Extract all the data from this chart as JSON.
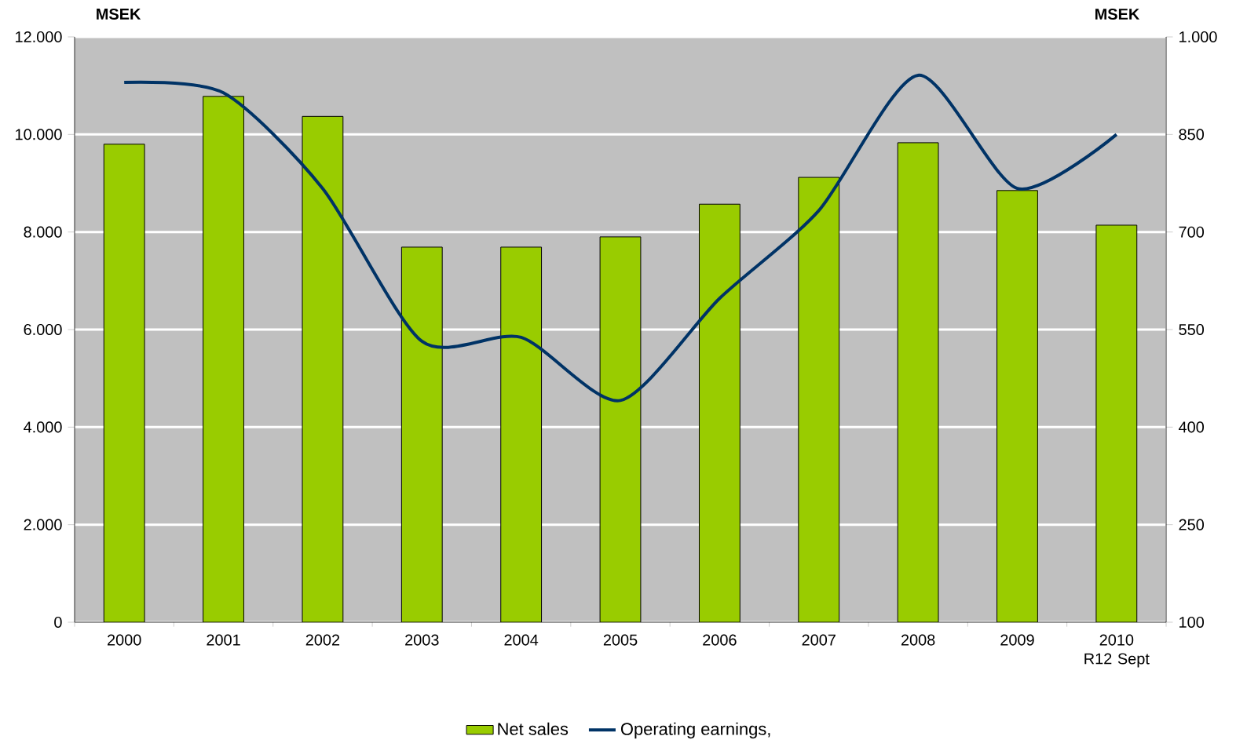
{
  "chart_data": {
    "type": "bar",
    "categories": [
      "2000",
      "2001",
      "2002",
      "2003",
      "2004",
      "2005",
      "2006",
      "2007",
      "2008",
      "2009",
      "2010 R12 Sept"
    ],
    "ylabel": "MSEK",
    "y2label": "MSEK",
    "series": [
      {
        "name": "Net sales",
        "color": "#99cc00",
        "values": [
          9800,
          10780,
          10370,
          7690,
          7690,
          7900,
          8570,
          9120,
          9830,
          8850,
          8140
        ]
      },
      {
        "name": "Operating earnings,",
        "type": "line",
        "axis": "y2",
        "color": "#003366",
        "values": [
          930,
          914,
          767,
          532,
          538,
          441,
          598,
          733,
          941,
          767,
          850
        ]
      }
    ],
    "ylim": [
      0,
      12000
    ],
    "yticks": [
      0,
      {
        "value": 2000,
        "label": "2.000"
      },
      {
        "value": 4000,
        "label": "4.000"
      },
      {
        "value": 6000,
        "label": "6.000"
      },
      {
        "value": 8000,
        "label": "8.000"
      },
      {
        "value": 10000,
        "label": "10.000"
      },
      {
        "value": 12000,
        "label": "12.000"
      }
    ],
    "y2lim": [
      100,
      1000
    ],
    "y2ticks": [
      100,
      250,
      400,
      550,
      700,
      850,
      {
        "value": 1000,
        "label": "1.000"
      }
    ],
    "grid": "y",
    "legend": "bottom",
    "marker": "none",
    "line_style": "solid"
  }
}
